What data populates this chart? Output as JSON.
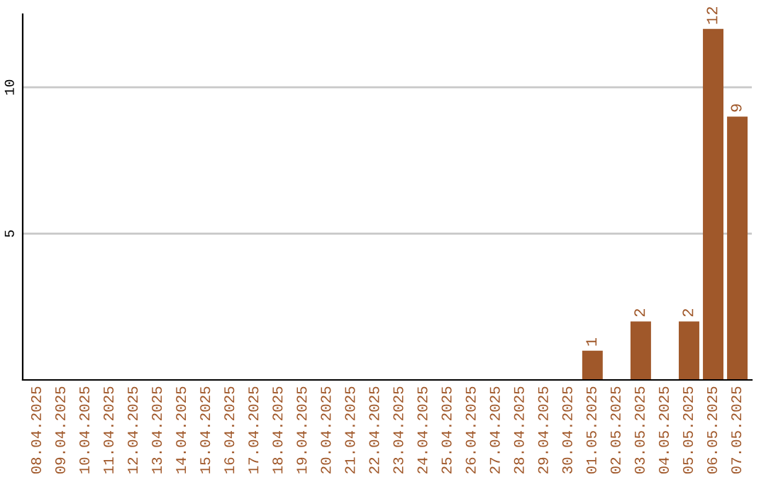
{
  "chart_data": {
    "type": "bar",
    "categories": [
      "08.04.2025",
      "09.04.2025",
      "10.04.2025",
      "11.04.2025",
      "12.04.2025",
      "13.04.2025",
      "14.04.2025",
      "15.04.2025",
      "16.04.2025",
      "17.04.2025",
      "18.04.2025",
      "19.04.2025",
      "20.04.2025",
      "21.04.2025",
      "22.04.2025",
      "23.04.2025",
      "24.04.2025",
      "25.04.2025",
      "26.04.2025",
      "27.04.2025",
      "28.04.2025",
      "29.04.2025",
      "30.04.2025",
      "01.05.2025",
      "02.05.2025",
      "03.05.2025",
      "04.05.2025",
      "05.05.2025",
      "06.05.2025",
      "07.05.2025"
    ],
    "values": [
      0,
      0,
      0,
      0,
      0,
      0,
      0,
      0,
      0,
      0,
      0,
      0,
      0,
      0,
      0,
      0,
      0,
      0,
      0,
      0,
      0,
      0,
      0,
      1,
      0,
      2,
      0,
      2,
      12,
      9
    ],
    "value_labels": [
      null,
      null,
      null,
      null,
      null,
      null,
      null,
      null,
      null,
      null,
      null,
      null,
      null,
      null,
      null,
      null,
      null,
      null,
      null,
      null,
      null,
      null,
      null,
      "1",
      null,
      "2",
      null,
      "2",
      "12",
      "9"
    ],
    "color": "#a0582a",
    "ylim": [
      0,
      12.5
    ],
    "yticks": [
      5,
      10
    ],
    "grid": "y",
    "legend": false
  }
}
